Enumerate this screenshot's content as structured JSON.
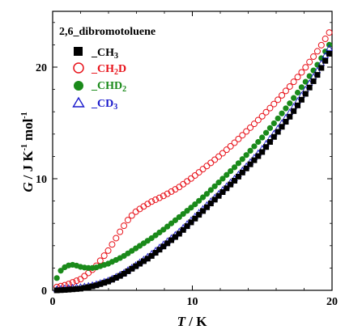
{
  "chart_data": {
    "type": "scatter",
    "xlabel_var": "T",
    "xlabel_unit": " / K",
    "ylabel_var": "G",
    "ylabel_unit_main": "/ J K",
    "ylabel_unit_exp1": "-1",
    "ylabel_unit_mol": "mol",
    "ylabel_unit_exp2": "-1",
    "xlim": [
      0,
      20
    ],
    "ylim": [
      0,
      25
    ],
    "xticks": [
      0,
      10,
      20
    ],
    "yticks": [
      0,
      10,
      20
    ],
    "xtick_labels": [
      "0",
      "10",
      "20"
    ],
    "ytick_labels": [
      "0",
      "10",
      "20"
    ],
    "legend": {
      "title": "2,6_dibromotoluene",
      "placement": "top-left"
    },
    "series": [
      {
        "name": "_CH3",
        "label_main": "_CH",
        "label_sub": "3",
        "marker": "filled-square",
        "color": "#000000",
        "x": [
          0.3,
          1.0,
          2.0,
          3.0,
          4.0,
          5.0,
          6.0,
          7.0,
          8.0,
          9.0,
          10.0,
          11.0,
          12.0,
          13.0,
          14.0,
          15.0,
          16.0,
          17.0,
          18.0,
          19.0,
          19.8
        ],
        "y": [
          0.0,
          0.05,
          0.15,
          0.4,
          0.8,
          1.4,
          2.2,
          3.0,
          4.0,
          5.0,
          6.2,
          7.4,
          8.6,
          9.8,
          11.1,
          12.4,
          14.0,
          15.6,
          17.4,
          19.4,
          21.2
        ]
      },
      {
        "name": "_CH2D",
        "label_main": "_CH",
        "label_sub": "2",
        "label_after": "D",
        "marker": "open-circle",
        "color": "#e8131b",
        "x": [
          0.3,
          1.0,
          2.0,
          3.0,
          4.0,
          5.0,
          5.5,
          6.0,
          7.0,
          8.0,
          9.0,
          10.0,
          11.0,
          12.0,
          13.0,
          14.0,
          15.0,
          16.0,
          17.0,
          18.0,
          19.0,
          19.8
        ],
        "y": [
          0.3,
          0.5,
          1.0,
          2.0,
          3.6,
          5.6,
          6.5,
          7.1,
          7.9,
          8.5,
          9.2,
          10.1,
          11.1,
          12.1,
          13.2,
          14.4,
          15.6,
          16.9,
          18.3,
          19.8,
          21.5,
          23.1
        ]
      },
      {
        "name": "_CHD2",
        "label_main": "_CHD",
        "label_sub": "2",
        "marker": "filled-circle",
        "color": "#1a8a1a",
        "x": [
          0.3,
          0.6,
          1.0,
          1.5,
          2.0,
          2.5,
          3.0,
          4.0,
          5.0,
          6.0,
          7.0,
          8.0,
          9.0,
          10.0,
          11.0,
          12.0,
          13.0,
          14.0,
          15.0,
          16.0,
          17.0,
          18.0,
          19.0,
          19.8
        ],
        "y": [
          1.1,
          1.8,
          2.2,
          2.3,
          2.1,
          2.0,
          2.0,
          2.4,
          3.0,
          3.8,
          4.6,
          5.5,
          6.5,
          7.5,
          8.6,
          9.8,
          11.0,
          12.3,
          13.7,
          15.2,
          16.8,
          18.5,
          20.3,
          22.0
        ]
      },
      {
        "name": "_CD3",
        "label_main": "_CD",
        "label_sub": "3",
        "marker": "open-triangle",
        "color": "#1a1acc",
        "x": [
          0.3,
          1.0,
          2.0,
          3.0,
          4.0,
          5.0,
          6.0,
          7.0,
          8.0,
          9.0,
          10.0,
          11.0,
          12.0,
          13.0,
          14.0,
          15.0,
          16.0,
          17.0,
          18.0,
          19.0,
          19.8
        ],
        "y": [
          0.1,
          0.2,
          0.3,
          0.5,
          0.9,
          1.5,
          2.3,
          3.2,
          4.2,
          5.2,
          6.4,
          7.6,
          8.8,
          10.0,
          11.3,
          12.7,
          14.3,
          16.0,
          17.8,
          19.8,
          21.7
        ]
      }
    ]
  }
}
